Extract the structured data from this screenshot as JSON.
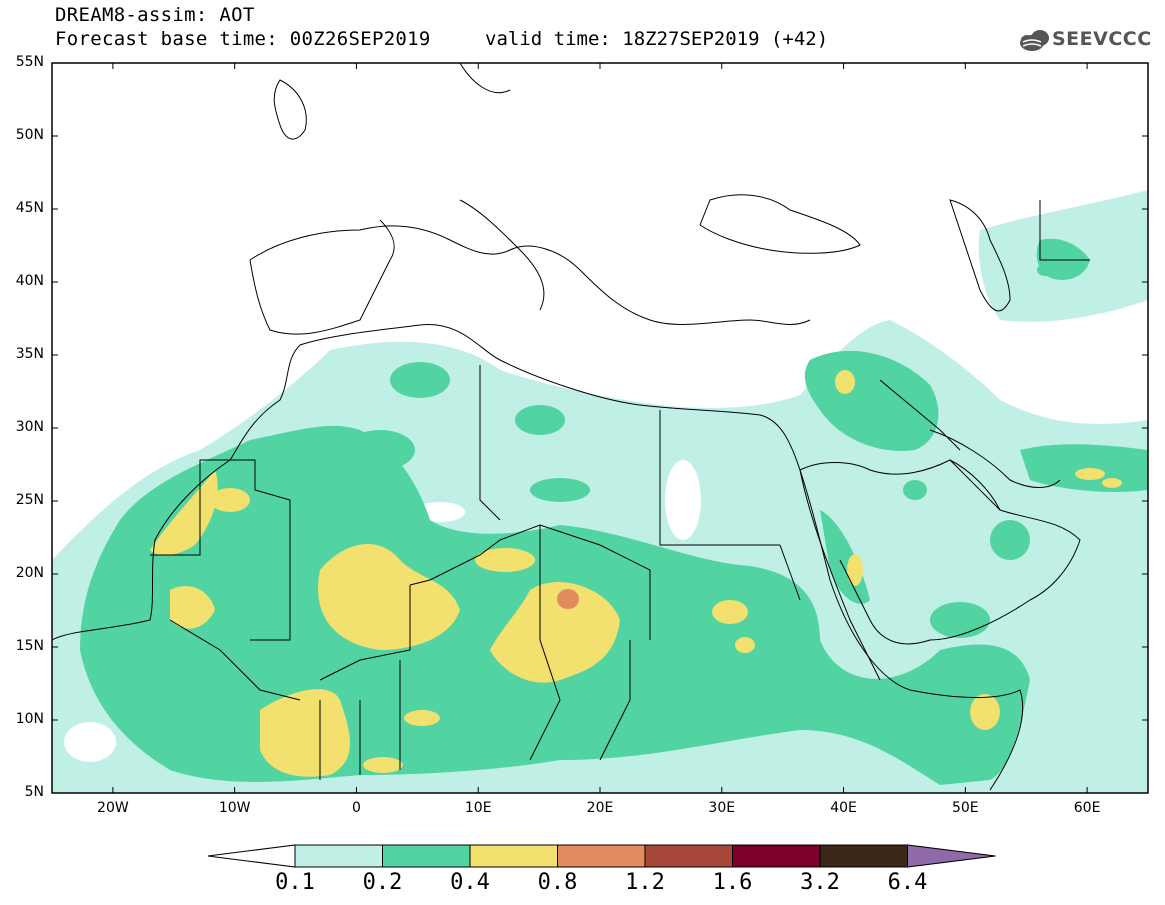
{
  "title": {
    "line1": "DREAM8-assim: AOT",
    "line2": "Forecast base time: 00Z26SEP2019",
    "valid": "valid time: 18Z27SEP2019 (+42)"
  },
  "logo": {
    "text": "SEEVCCC",
    "icon": "cloud-icon"
  },
  "map": {
    "extent": {
      "lon_min": -25,
      "lon_max": 65,
      "lat_min": 5,
      "lat_max": 55
    },
    "lat_ticks": [
      "55N",
      "50N",
      "45N",
      "40N",
      "35N",
      "30N",
      "25N",
      "20N",
      "15N",
      "10N",
      "5N"
    ],
    "lon_ticks": [
      "20W",
      "10W",
      "0",
      "10E",
      "20E",
      "30E",
      "40E",
      "50E",
      "60E"
    ]
  },
  "colorbar": {
    "labels": [
      "0.1",
      "0.2",
      "0.4",
      "0.8",
      "1.2",
      "1.6",
      "3.2",
      "6.4"
    ],
    "colors": [
      "#ffffff",
      "#c0efe6",
      "#52d3a2",
      "#f2e06f",
      "#e38a5f",
      "#a8483b",
      "#7d0029",
      "#3b2617",
      "#8e6aa8"
    ]
  }
}
